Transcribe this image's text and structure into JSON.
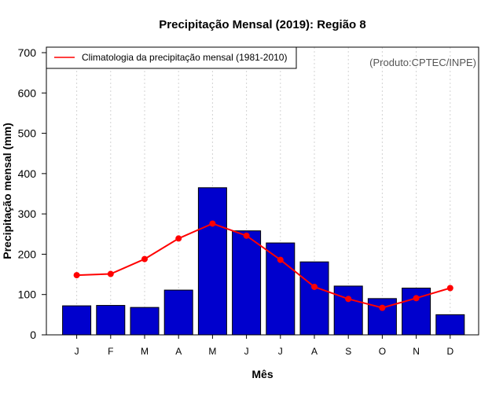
{
  "chart_data": {
    "type": "bar",
    "title": "Precipitação Mensal (2019): Região 8",
    "xlabel": "Mês",
    "ylabel": "Precipitação mensal (mm)",
    "ylim": [
      0,
      700
    ],
    "yticks": [
      0,
      100,
      200,
      300,
      400,
      500,
      600,
      700
    ],
    "categories": [
      "J",
      "F",
      "M",
      "A",
      "M",
      "J",
      "J",
      "A",
      "S",
      "O",
      "N",
      "D"
    ],
    "series": [
      {
        "name": "Precipitação mensal 2019",
        "type": "bar",
        "color": "#0000CD",
        "values": [
          72,
          73,
          68,
          111,
          365,
          258,
          228,
          181,
          121,
          90,
          116,
          50
        ]
      },
      {
        "name": "Climatologia da precipitação mensal (1981-2010)",
        "type": "line",
        "color": "#FF0000",
        "values": [
          148,
          151,
          188,
          239,
          276,
          246,
          186,
          119,
          89,
          67,
          91,
          116
        ]
      }
    ],
    "grid": "vertical-dotted",
    "legend": {
      "position": "top-left",
      "entries": [
        "Climatologia da precipitação mensal (1981-2010)"
      ]
    },
    "annotation": "(Produto:CPTEC/INPE)"
  }
}
